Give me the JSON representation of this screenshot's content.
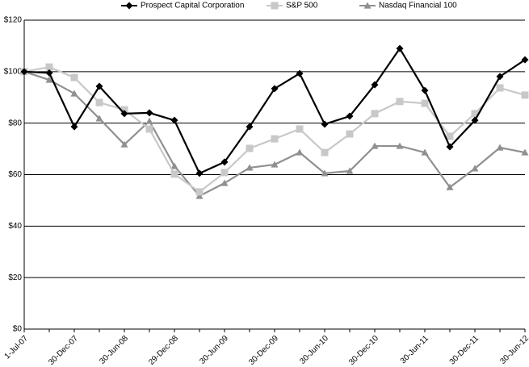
{
  "chart_data": {
    "type": "line",
    "categories": [
      "1-Jul-07",
      null,
      "30-Dec-07",
      null,
      "30-Jun-08",
      null,
      "29-Dec-08",
      null,
      "30-Jun-09",
      null,
      "30-Dec-09",
      null,
      "30-Jun-10",
      null,
      "30-Dec-10",
      null,
      "30-Jun-11",
      null,
      "30-Dec-11",
      null,
      "30-Jun-12"
    ],
    "series": [
      {
        "name": "Prospect Capital Corporation",
        "color": "#000000",
        "marker": "diamond",
        "values": [
          100,
          99.5,
          78.6,
          94.3,
          83.7,
          84,
          81.1,
          60.5,
          64.9,
          78.6,
          93.4,
          99.3,
          79.6,
          82.7,
          94.9,
          109,
          92.7,
          70.8,
          81.1,
          98.1,
          104.6
        ]
      },
      {
        "name": "S&P 500",
        "color": "#c8c8c8",
        "marker": "square",
        "values": [
          100,
          101.8,
          97.7,
          88,
          85.2,
          77.7,
          60.2,
          53.3,
          60.8,
          70.2,
          73.9,
          77.7,
          68.6,
          75.8,
          83.7,
          88.4,
          87.7,
          74.9,
          83.7,
          93.7,
          90.9
        ]
      },
      {
        "name": "Nasdaq Financial 100",
        "color": "#909090",
        "marker": "triangle",
        "values": [
          100,
          96.8,
          91.5,
          81.8,
          71.7,
          80.8,
          63.3,
          51.7,
          56.7,
          62.7,
          63.9,
          68.6,
          60.5,
          61.4,
          71.1,
          71.1,
          68.6,
          55.1,
          62.4,
          70.5,
          68.6
        ]
      }
    ],
    "ylim": [
      0,
      120
    ],
    "yticks": [
      {
        "value": 0,
        "label": "$0"
      },
      {
        "value": 20,
        "label": "$20"
      },
      {
        "value": 40,
        "label": "$40"
      },
      {
        "value": 60,
        "label": "$60"
      },
      {
        "value": 80,
        "label": "$80"
      },
      {
        "value": 100,
        "label": "$100"
      },
      {
        "value": 120,
        "label": "$120"
      }
    ],
    "grid": true,
    "legend": "top"
  }
}
